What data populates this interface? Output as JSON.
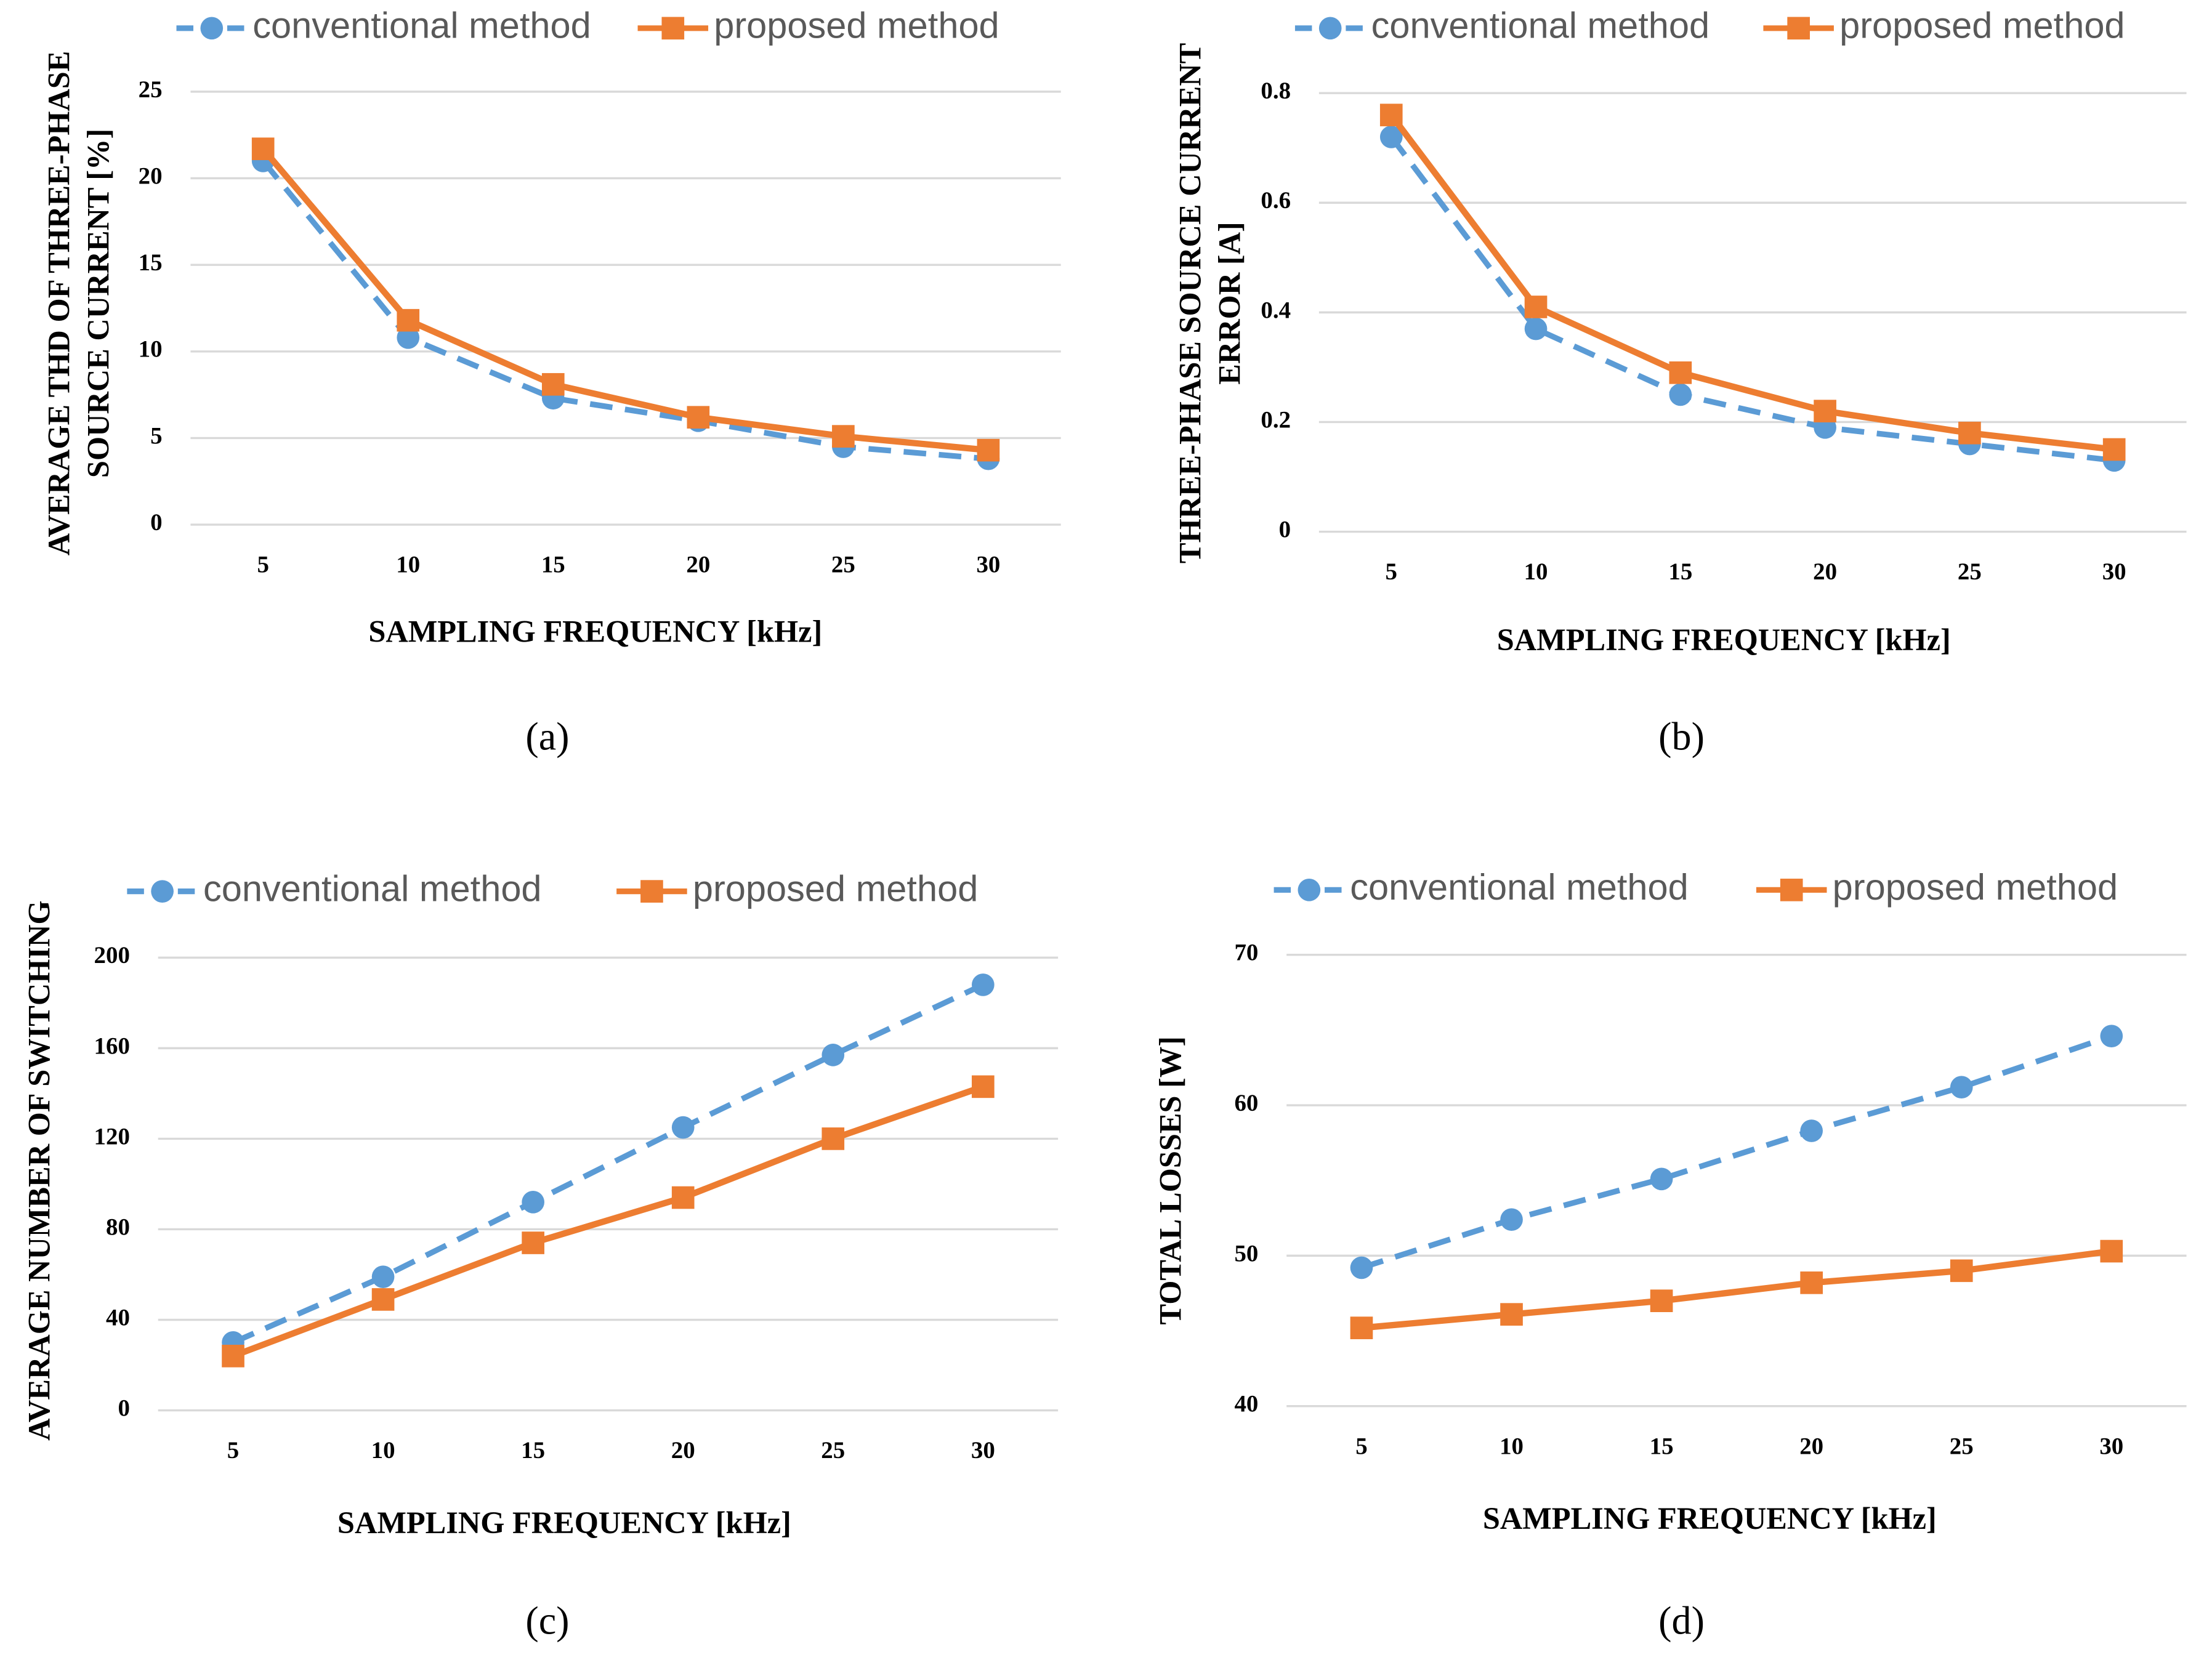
{
  "charts": [
    {
      "chart_data": {
        "type": "line",
        "panel_label": "(a)",
        "x_label": "SAMPLING FREQUENCY [kHz]",
        "y_label": [
          "AVERAGE THD OF THREE-PHASE",
          "SOURCE CURRENT [%]"
        ],
        "categories": [
          "5",
          "10",
          "15",
          "20",
          "25",
          "30"
        ],
        "series": [
          {
            "name": "conventional method",
            "color": "#5B9BD5",
            "values": [
              21,
              10.8,
              7.3,
              6.0,
              4.5,
              3.8
            ]
          },
          {
            "name": "proposed method",
            "color": "#ED7D31",
            "values": [
              21.7,
              11.8,
              8.1,
              6.2,
              5.1,
              4.3
            ]
          }
        ],
        "ylim": [
          0,
          25
        ],
        "yticks": [
          0,
          5,
          10,
          15,
          20,
          25
        ],
        "grid": true,
        "legend": "top"
      }
    },
    {
      "chart_data": {
        "type": "line",
        "panel_label": "(b)",
        "x_label": "SAMPLING FREQUENCY [kHz]",
        "y_label": [
          "THREE-PHASE SOURCE CURRENT",
          "ERROR [A]"
        ],
        "categories": [
          "5",
          "10",
          "15",
          "20",
          "25",
          "30"
        ],
        "series": [
          {
            "name": "conventional method",
            "color": "#5B9BD5",
            "values": [
              0.72,
              0.37,
              0.25,
              0.19,
              0.16,
              0.13
            ]
          },
          {
            "name": "proposed method",
            "color": "#ED7D31",
            "values": [
              0.76,
              0.41,
              0.29,
              0.22,
              0.18,
              0.15
            ]
          }
        ],
        "ylim": [
          0,
          0.8
        ],
        "yticks": [
          0,
          0.2,
          0.4,
          0.6,
          0.8
        ],
        "grid": true,
        "legend": "top"
      }
    },
    {
      "chart_data": {
        "type": "line",
        "panel_label": "(c)",
        "x_label": "SAMPLING FREQUENCY [kHz]",
        "y_label": [
          "AVERAGE NUMBER OF SWITCHING"
        ],
        "categories": [
          "5",
          "10",
          "15",
          "20",
          "25",
          "30"
        ],
        "series": [
          {
            "name": "conventional method",
            "color": "#5B9BD5",
            "values": [
              30,
              59,
              92,
              125,
              157,
              188
            ]
          },
          {
            "name": "proposed method",
            "color": "#ED7D31",
            "values": [
              24,
              49,
              74,
              94,
              120,
              143
            ]
          }
        ],
        "ylim": [
          0,
          200
        ],
        "yticks": [
          0,
          40,
          80,
          120,
          160,
          200
        ],
        "grid": true,
        "legend": "top"
      }
    },
    {
      "chart_data": {
        "type": "line",
        "panel_label": "(d)",
        "x_label": "SAMPLING FREQUENCY [kHz]",
        "y_label": [
          "TOTAL LOSSES [W]"
        ],
        "categories": [
          "5",
          "10",
          "15",
          "20",
          "25",
          "30"
        ],
        "series": [
          {
            "name": "conventional method",
            "color": "#5B9BD5",
            "values": [
              49.2,
              52.4,
              55.1,
              58.3,
              61.2,
              64.6
            ]
          },
          {
            "name": "proposed method",
            "color": "#ED7D31",
            "values": [
              45.2,
              46.1,
              47.0,
              48.2,
              49.0,
              50.3
            ]
          }
        ],
        "ylim": [
          40,
          70
        ],
        "yticks": [
          40,
          50,
          60,
          70
        ],
        "grid": true,
        "legend": "top"
      }
    }
  ]
}
